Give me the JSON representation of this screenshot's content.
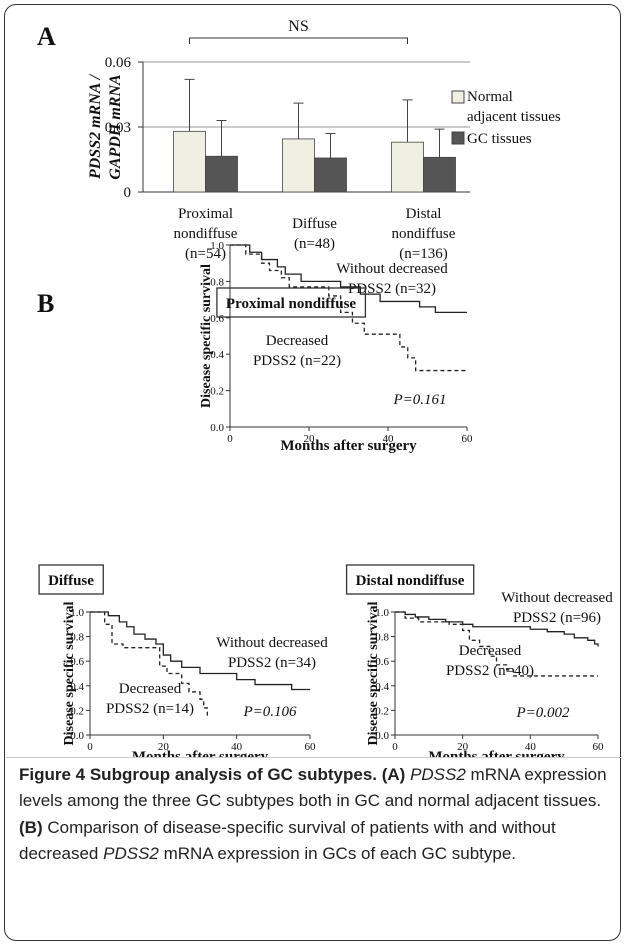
{
  "chart_data": [
    {
      "type": "bar",
      "panel": "A",
      "y_label": "PDSS2 mRNA /\nGAPDH mRNA",
      "categories": [
        "Proximal\nnondiffuse\n(n=54)",
        "Diffuse\n(n=48)",
        "Distal\nnondiffuse\n(n=136)"
      ],
      "series": [
        {
          "name": "Normal\nadjacent tissues",
          "color": "#efefe2",
          "values": [
            0.028,
            0.0245,
            0.023
          ],
          "errors": [
            0.024,
            0.0165,
            0.0195
          ]
        },
        {
          "name": "GC tissues",
          "color": "#555555",
          "values": [
            0.0165,
            0.0157,
            0.016
          ],
          "errors": [
            0.0165,
            0.0113,
            0.013
          ]
        }
      ],
      "ylim": [
        0,
        0.06
      ],
      "yticks": [
        0,
        0.03,
        0.06
      ],
      "grid": true,
      "annotation": "NS"
    },
    {
      "type": "survival",
      "panel": "B",
      "title": "Proximal nondiffuse",
      "y_label": "Disease specific survival",
      "x_label": "Months after surgery",
      "series": [
        {
          "name": "Without decreased\nPDSS2 (n=32)",
          "color": "#222222",
          "style": "solid",
          "x": [
            0,
            5,
            8,
            12,
            14,
            18,
            28,
            33,
            38,
            48,
            52,
            60
          ],
          "values": [
            1,
            0.96,
            0.92,
            0.88,
            0.84,
            0.8,
            0.77,
            0.73,
            0.69,
            0.66,
            0.63,
            0.63
          ]
        },
        {
          "name": "Decreased\nPDSS2 (n=22)",
          "color": "#222222",
          "style": "dashed",
          "x": [
            0,
            4,
            8,
            10,
            13,
            15,
            25,
            28,
            31,
            34,
            43,
            45,
            47,
            60
          ],
          "values": [
            1,
            0.95,
            0.9,
            0.86,
            0.82,
            0.77,
            0.72,
            0.63,
            0.57,
            0.51,
            0.44,
            0.38,
            0.31,
            0.31
          ]
        }
      ],
      "xlim": [
        0,
        60
      ],
      "xticks": [
        0,
        20,
        40,
        60
      ],
      "ylim": [
        0,
        1
      ],
      "yticks": [
        {
          "value": 0,
          "label": "0.0"
        },
        0.2,
        0.4,
        0.6,
        0.8,
        {
          "value": 1,
          "label": "1.0"
        }
      ],
      "annotation": "P=0.161"
    },
    {
      "type": "survival",
      "title": "Diffuse",
      "y_label": "Disease specific survival",
      "x_label": "Months after surgery",
      "series": [
        {
          "name": "Without decreased\nPDSS2 (n=34)",
          "color": "#222222",
          "style": "solid",
          "x": [
            0,
            5,
            8,
            10,
            12,
            15,
            18,
            20,
            22,
            25,
            30,
            40,
            45,
            55,
            60
          ],
          "values": [
            1,
            0.97,
            0.92,
            0.88,
            0.82,
            0.78,
            0.74,
            0.65,
            0.6,
            0.55,
            0.5,
            0.45,
            0.41,
            0.37,
            0.37
          ]
        },
        {
          "name": "Decreased\nPDSS2 (n=14)",
          "color": "#222222",
          "style": "dashed",
          "x": [
            0,
            4,
            6,
            9,
            19,
            21,
            25,
            27,
            30,
            31,
            32
          ],
          "values": [
            1,
            0.9,
            0.74,
            0.71,
            0.56,
            0.5,
            0.42,
            0.35,
            0.29,
            0.22,
            0.14
          ]
        }
      ],
      "xlim": [
        0,
        60
      ],
      "xticks": [
        0,
        20,
        40,
        60
      ],
      "ylim": [
        0,
        1
      ],
      "yticks": [
        {
          "value": 0,
          "label": "0.0"
        },
        0.2,
        0.4,
        0.6,
        0.8,
        {
          "value": 1,
          "label": "1.0"
        }
      ],
      "annotation": "P=0.106"
    },
    {
      "type": "survival",
      "title": "Distal nondiffuse",
      "y_label": "Disease specific survival",
      "x_label": "Months after surgery",
      "series": [
        {
          "name": "Without decreased\nPDSS2 (n=96)",
          "color": "#222222",
          "style": "solid",
          "x": [
            0,
            3,
            6,
            10,
            15,
            20,
            23,
            40,
            45,
            50,
            53,
            57,
            59,
            60
          ],
          "values": [
            1,
            0.98,
            0.96,
            0.94,
            0.92,
            0.9,
            0.88,
            0.86,
            0.84,
            0.82,
            0.79,
            0.77,
            0.74,
            0.72
          ]
        },
        {
          "name": "Decreased\nPDSS2 (n=40)",
          "color": "#222222",
          "style": "dashed",
          "x": [
            0,
            3,
            7,
            16,
            20,
            22,
            25,
            28,
            30,
            33,
            35,
            60
          ],
          "values": [
            1,
            0.95,
            0.92,
            0.9,
            0.85,
            0.77,
            0.72,
            0.64,
            0.57,
            0.53,
            0.48,
            0.48
          ]
        }
      ],
      "xlim": [
        0,
        60
      ],
      "xticks": [
        0,
        20,
        40,
        60
      ],
      "ylim": [
        0,
        1
      ],
      "yticks": [
        {
          "value": 0,
          "label": "0.0"
        },
        0.2,
        0.4,
        0.6,
        0.8,
        {
          "value": 1,
          "label": "1.0"
        }
      ],
      "annotation": "P=0.002"
    }
  ],
  "caption": [
    {
      "text": "Figure 4 Subgroup analysis of GC subtypes. (A)",
      "style": "bold"
    },
    {
      "text": " ",
      "style": "normal"
    },
    {
      "text": "PDSS2",
      "style": "italic"
    },
    {
      "text": " mRNA expression levels among the three GC subtypes both in GC and normal adjacent tissues. ",
      "style": "normal"
    },
    {
      "text": "(B)",
      "style": "bold"
    },
    {
      "text": " Comparison of disease-specific survival of patients with and without decreased ",
      "style": "normal"
    },
    {
      "text": "PDSS2",
      "style": "italic"
    },
    {
      "text": " mRNA expression in GCs of each GC subtype.",
      "style": "normal"
    }
  ]
}
